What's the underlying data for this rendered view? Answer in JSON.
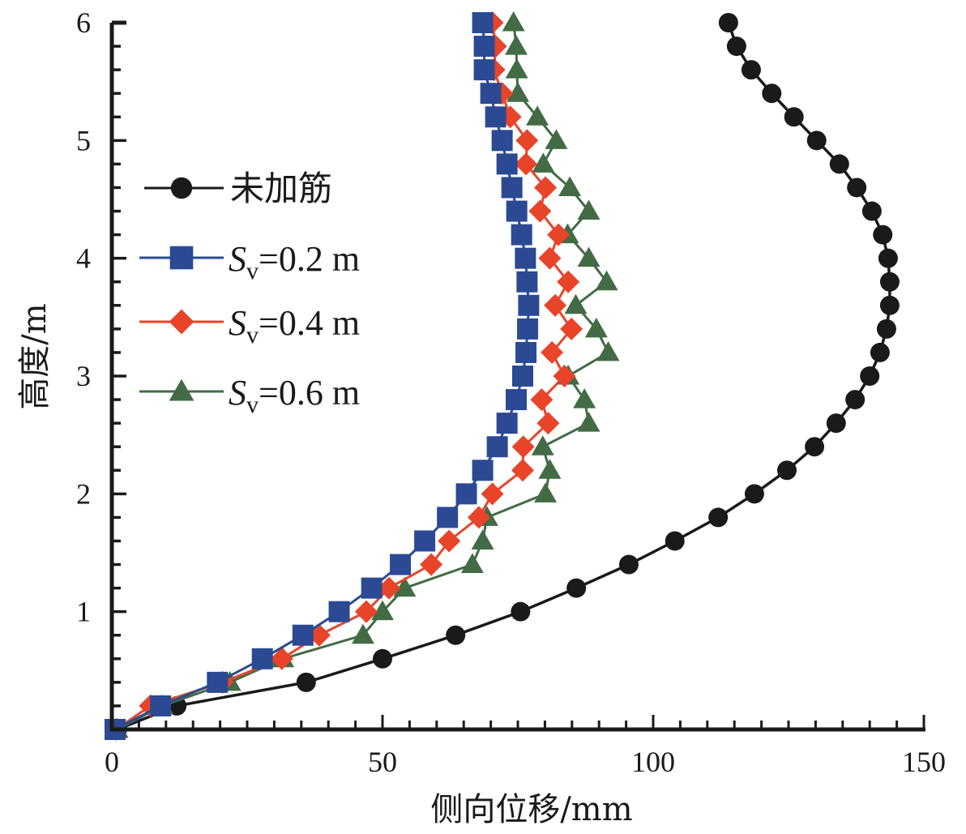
{
  "chart_data": {
    "type": "line",
    "title": "",
    "xlabel": "侧向位移/mm",
    "ylabel": "高度/m",
    "xlim": [
      0,
      150
    ],
    "ylim": [
      0,
      6
    ],
    "x_major_ticks": [
      0,
      50,
      100,
      150
    ],
    "x_tick_labels": [
      "0",
      "50",
      "100",
      "150"
    ],
    "x_minor_step": 5,
    "y_major_ticks": [
      1,
      2,
      3,
      4,
      5,
      6
    ],
    "y_tick_labels": [
      "1",
      "2",
      "3",
      "4",
      "5",
      "6"
    ],
    "y_minor_step": 0.2,
    "grid": false,
    "legend_position": "upper-left",
    "orientation": "x = lateral displacement, y = height",
    "heights": [
      0,
      0.2,
      0.4,
      0.6,
      0.8,
      1.0,
      1.2,
      1.4,
      1.6,
      1.8,
      2.0,
      2.2,
      2.4,
      2.6,
      2.8,
      3.0,
      3.2,
      3.4,
      3.6,
      3.8,
      4.0,
      4.2,
      4.4,
      4.6,
      4.8,
      5.0,
      5.2,
      5.4,
      5.6,
      5.8,
      6.0
    ],
    "series": [
      {
        "name": "未加筋",
        "marker": "circle",
        "color": "#1a1a1a",
        "values": [
          1.0,
          12.0,
          35.9,
          50.0,
          63.5,
          75.5,
          85.8,
          95.5,
          104.0,
          112.0,
          118.7,
          124.7,
          129.8,
          133.8,
          137.3,
          140.0,
          141.9,
          143.1,
          143.7,
          143.7,
          143.4,
          142.4,
          140.4,
          137.6,
          134.4,
          130.2,
          126.0,
          121.9,
          118.1,
          115.4,
          113.9
        ]
      },
      {
        "name": "Sv=0.2 m",
        "label_main": "S",
        "label_sub": "v",
        "label_rest": "=0.2 m",
        "marker": "square",
        "color": "#2B4A93",
        "values": [
          0.6,
          9.0,
          19.5,
          27.8,
          35.3,
          42.0,
          48.0,
          53.3,
          57.8,
          62.0,
          65.5,
          68.5,
          71.2,
          73.0,
          74.7,
          75.9,
          76.5,
          76.8,
          77.0,
          76.7,
          76.4,
          75.7,
          74.8,
          73.9,
          73.0,
          72.1,
          70.9,
          70.0,
          68.8,
          68.8,
          68.5
        ]
      },
      {
        "name": "Sv=0.4 m",
        "label_main": "S",
        "label_sub": "v",
        "label_rest": "=0.4 m",
        "marker": "diamond",
        "color": "#E8442A",
        "values": [
          0.8,
          7.1,
          20.4,
          31.4,
          38.3,
          47.0,
          51.2,
          59.0,
          62.3,
          67.8,
          70.3,
          75.9,
          76.0,
          80.6,
          79.4,
          83.6,
          81.3,
          84.9,
          81.9,
          84.3,
          80.9,
          82.5,
          79.1,
          80.1,
          76.5,
          76.7,
          73.6,
          72.1,
          70.6,
          70.9,
          70.3
        ]
      },
      {
        "name": "Sv=0.6 m",
        "label_main": "S",
        "label_sub": "v",
        "label_rest": "=0.6 m",
        "marker": "triangle",
        "color": "#436B45",
        "values": [
          1.0,
          9.3,
          21.8,
          31.6,
          46.4,
          50.0,
          54.1,
          66.6,
          68.5,
          69.3,
          80.1,
          80.9,
          79.6,
          88.1,
          87.3,
          84.3,
          91.7,
          89.5,
          85.7,
          91.4,
          88.1,
          84.2,
          88.1,
          84.6,
          79.7,
          82.1,
          78.6,
          75.0,
          74.8,
          74.7,
          74.2
        ]
      }
    ]
  }
}
